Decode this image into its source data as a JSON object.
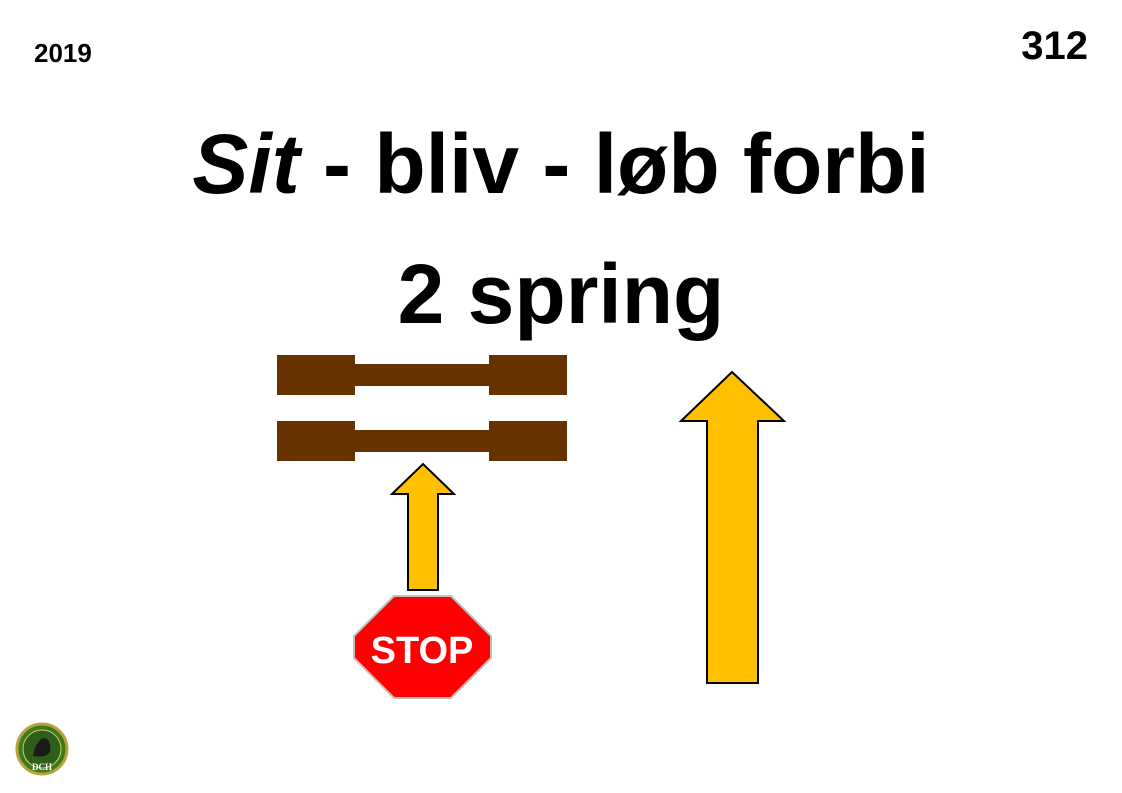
{
  "header": {
    "year": "2019",
    "sign_number": "312"
  },
  "title": {
    "line1_italic": "Sit",
    "line1_rest": " - bliv - løb forbi",
    "line2": "2 spring"
  },
  "stop_sign": {
    "label": "STOP",
    "color": "#ff0000"
  },
  "colors": {
    "hurdle": "#663300",
    "arrow": "#ffc000",
    "outline": "#000000"
  },
  "logo": {
    "text": "DCH",
    "icon": "club-logo-icon"
  }
}
